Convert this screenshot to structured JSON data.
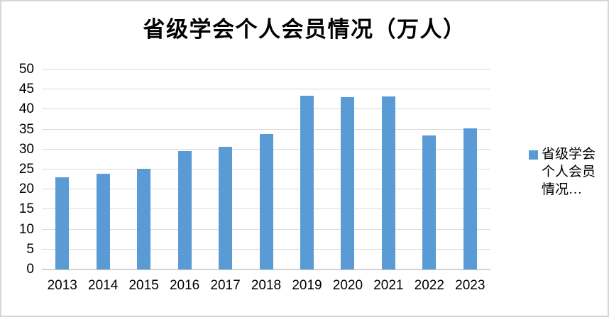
{
  "title": "省级学会个人会员情况（万人）",
  "legend": {
    "lines": [
      "省级学会",
      "个人会员",
      "情况…"
    ],
    "full_name": "省级学会个人会员情况（万人）"
  },
  "colors": {
    "bar": "#5B9BD5",
    "gridline": "#D9D9D9",
    "axis": "#D2D2D2",
    "frame_border": "#D6D6D6",
    "text": "#000000"
  },
  "chart_data": {
    "type": "bar",
    "title": "省级学会个人会员情况（万人）",
    "categories": [
      "2013",
      "2014",
      "2015",
      "2016",
      "2017",
      "2018",
      "2019",
      "2020",
      "2021",
      "2022",
      "2023"
    ],
    "series": [
      {
        "name": "省级学会个人会员情况（万人）",
        "values": [
          23.0,
          24.0,
          25.1,
          29.6,
          30.7,
          33.9,
          43.4,
          43.1,
          43.3,
          33.5,
          35.3
        ]
      }
    ],
    "xlabel": "",
    "ylabel": "",
    "ylim": [
      0,
      50
    ],
    "yticks": [
      0,
      5,
      10,
      15,
      20,
      25,
      30,
      35,
      40,
      45,
      50
    ],
    "grid": true,
    "legend_position": "right",
    "bar_color": "#5B9BD5"
  }
}
